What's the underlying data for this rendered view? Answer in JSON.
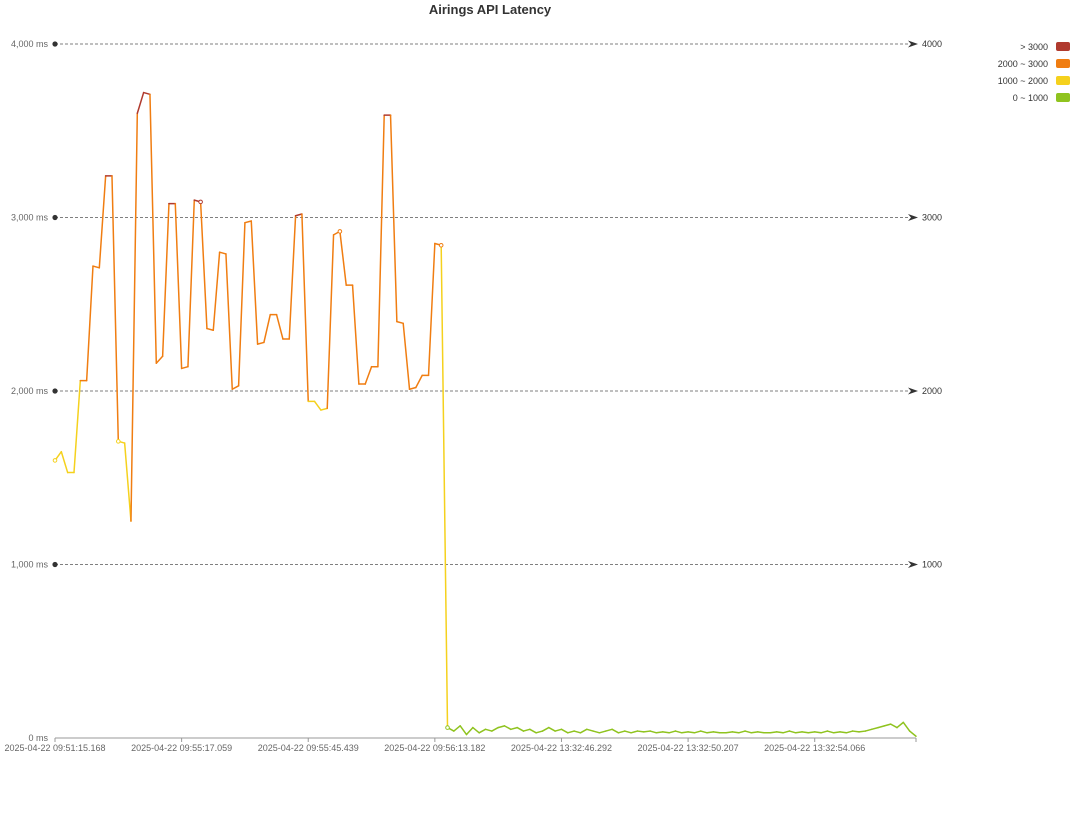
{
  "chart_data": {
    "type": "line",
    "title": "Airings API Latency",
    "y_unit": "ms",
    "ylim": [
      0,
      4000
    ],
    "y_ticks_left": [
      "0 ms",
      "1,000 ms",
      "2,000 ms",
      "3,000 ms",
      "4,000 ms"
    ],
    "y_ticks_right": [
      "1000",
      "2000",
      "3000",
      "4000"
    ],
    "grid": true,
    "x_tick_labels": [
      "2025-04-22 09:51:15.168",
      "2025-04-22 09:55:17.059",
      "2025-04-22 09:55:45.439",
      "2025-04-22 09:56:13.182",
      "2025-04-22 13:32:46.292",
      "2025-04-22 13:32:50.207",
      "2025-04-22 13:32:54.066"
    ],
    "x_tick_index": [
      0,
      20,
      40,
      60,
      80,
      100,
      120
    ],
    "legend_position": "top-right",
    "legend": [
      {
        "label": "> 3000",
        "color": "#b03a2e"
      },
      {
        "label": "2000 ~ 3000",
        "color": "#f07d11"
      },
      {
        "label": "1000 ~ 2000",
        "color": "#f5d11d"
      },
      {
        "label": "0 ~ 1000",
        "color": "#8fc31f"
      }
    ],
    "series": [
      {
        "values": [
          1600,
          1650,
          1530,
          1530,
          2060,
          2060,
          2720,
          2710,
          3240,
          3240,
          1710,
          1700,
          1250,
          3600,
          3720,
          3710,
          2160,
          2200,
          3080,
          3080,
          2130,
          2140,
          3100,
          3090,
          2360,
          2350,
          2800,
          2790,
          2010,
          2030,
          2970,
          2980,
          2270,
          2280,
          2440,
          2440,
          2300,
          2300,
          3010,
          3020,
          1940,
          1940,
          1890,
          1900,
          2900,
          2920,
          2610,
          2610,
          2040,
          2040,
          2140,
          2140,
          3590,
          3590,
          2400,
          2390,
          2010,
          2020,
          2090,
          2090,
          2850,
          2840,
          60,
          40,
          70,
          20,
          60,
          30,
          50,
          40,
          60,
          70,
          50,
          60,
          40,
          50,
          30,
          40,
          60,
          40,
          50,
          30,
          40,
          30,
          50,
          40,
          30,
          40,
          50,
          30,
          40,
          30,
          40,
          35,
          40,
          30,
          35,
          30,
          40,
          30,
          35,
          30,
          40,
          30,
          35,
          30,
          30,
          35,
          30,
          40,
          30,
          35,
          30,
          30,
          35,
          30,
          40,
          30,
          35,
          30,
          35,
          30,
          40,
          30,
          35,
          30,
          40,
          35,
          40,
          50,
          60,
          70,
          80,
          60,
          90,
          40,
          10
        ]
      }
    ]
  }
}
